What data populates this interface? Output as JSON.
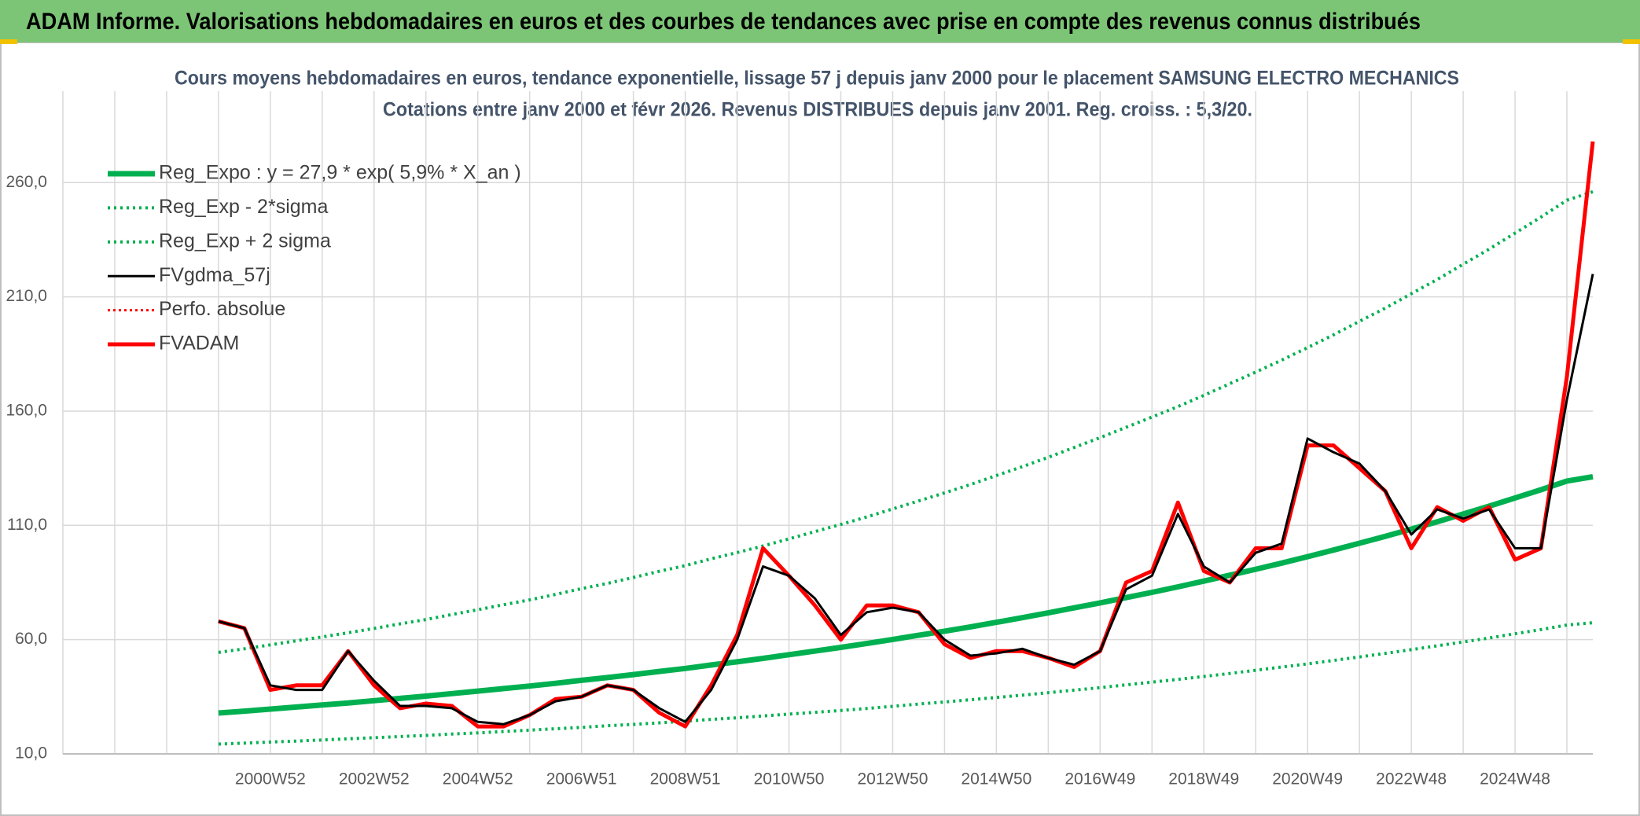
{
  "header": {
    "title": "ADAM Informe. Valorisations hebdomadaires en euros et des courbes de tendances avec prise en compte des revenus connus distribués"
  },
  "chart_data": {
    "type": "line",
    "title": "Cours moyens hebdomadaires en euros, tendance exponentielle, lissage 57 j depuis janv 2000 pour le placement SAMSUNG ELECTRO MECHANICS",
    "subtitle": "Cotations entre janv 2000 et févr 2026. Revenus DISTRIBUES depuis janv 2001. Reg. croiss. : 5,3/20.",
    "categories": [
      null,
      null,
      null,
      null,
      null,
      null,
      null,
      null,
      "2000W52",
      null,
      null,
      null,
      "2002W52",
      null,
      null,
      null,
      "2004W52",
      null,
      null,
      null,
      "2006W51",
      null,
      null,
      null,
      "2008W51",
      null,
      null,
      null,
      "2010W50",
      null,
      null,
      null,
      "2012W50",
      null,
      null,
      null,
      "2014W50",
      null,
      null,
      null,
      "2016W49",
      null,
      null,
      null,
      "2018W49",
      null,
      null,
      null,
      "2020W49",
      null,
      null,
      null,
      "2022W48",
      null,
      null,
      null,
      "2024W48",
      null,
      null,
      null
    ],
    "ylim": [
      10,
      300
    ],
    "yticks": [
      {
        "value": 10,
        "label": "10,0"
      },
      {
        "value": 60,
        "label": "60,0"
      },
      {
        "value": 110,
        "label": "110,0"
      },
      {
        "value": 160,
        "label": "160,0"
      },
      {
        "value": 210,
        "label": "210,0"
      },
      {
        "value": 260,
        "label": "260,0"
      }
    ],
    "grid": true,
    "legend": "top-left",
    "series": [
      {
        "name": "Reg_Expo : y = 27,9 * exp( 5,9% *  X_an )",
        "color": "#00b050",
        "style": "solid",
        "width": 7,
        "values": [
          null,
          null,
          null,
          null,
          null,
          null,
          27.9,
          28.7,
          29.6,
          30.5,
          31.4,
          32.3,
          33.3,
          34.3,
          35.3,
          36.4,
          37.5,
          38.6,
          39.7,
          40.9,
          42.2,
          43.4,
          44.7,
          46.1,
          47.4,
          48.9,
          50.3,
          51.8,
          53.4,
          55.0,
          56.6,
          58.3,
          60.1,
          61.9,
          63.7,
          65.6,
          67.6,
          69.6,
          71.7,
          73.9,
          76.1,
          78.4,
          80.7,
          83.1,
          85.6,
          88.2,
          90.8,
          93.5,
          96.3,
          99.2,
          102.2,
          105.2,
          108.4,
          111.6,
          115.0,
          118.4,
          122.0,
          125.6,
          129.4,
          131.3
        ]
      },
      {
        "name": "Reg_Exp - 2*sigma",
        "color": "#00b050",
        "style": "dotted",
        "width": 4,
        "values": [
          null,
          null,
          null,
          null,
          null,
          null,
          14.3,
          14.7,
          15.2,
          15.6,
          16.1,
          16.6,
          17.1,
          17.6,
          18.1,
          18.7,
          19.2,
          19.8,
          20.4,
          21.0,
          21.6,
          22.3,
          22.9,
          23.6,
          24.3,
          25.1,
          25.8,
          26.6,
          27.4,
          28.2,
          29.0,
          29.9,
          30.8,
          31.8,
          32.7,
          33.7,
          34.7,
          35.7,
          36.8,
          37.9,
          39.0,
          40.2,
          41.4,
          42.6,
          43.9,
          45.2,
          46.6,
          48.0,
          49.4,
          50.9,
          52.4,
          54.0,
          55.6,
          57.3,
          59.0,
          60.7,
          62.6,
          64.4,
          66.4,
          67.4
        ]
      },
      {
        "name": "Reg_Exp + 2 sigma",
        "color": "#00b050",
        "style": "dotted",
        "width": 4,
        "values": [
          null,
          null,
          null,
          null,
          null,
          null,
          54.4,
          56.0,
          57.7,
          59.5,
          61.2,
          63.0,
          64.9,
          66.9,
          68.8,
          71.0,
          73.1,
          75.3,
          77.4,
          79.8,
          82.3,
          84.6,
          87.2,
          89.9,
          92.4,
          95.4,
          98.1,
          101.0,
          104.1,
          107.3,
          110.4,
          113.7,
          117.2,
          120.7,
          124.2,
          127.9,
          131.8,
          135.7,
          139.8,
          144.1,
          148.4,
          152.9,
          157.4,
          162.0,
          166.9,
          172.0,
          177.1,
          182.3,
          187.8,
          193.4,
          199.3,
          205.1,
          211.4,
          217.6,
          224.3,
          230.9,
          237.9,
          244.9,
          252.3,
          256.0
        ]
      },
      {
        "name": "FVgdma_57j",
        "color": "#000000",
        "style": "solid",
        "width": 3,
        "values": [
          null,
          null,
          null,
          null,
          null,
          null,
          68,
          65,
          40,
          38,
          38,
          55,
          42,
          31,
          31,
          30,
          24,
          23,
          27,
          33,
          35,
          40,
          38,
          30,
          24,
          38,
          60,
          92,
          88,
          78,
          62,
          72,
          74,
          72,
          60,
          53,
          54,
          56,
          52,
          49,
          55,
          82,
          88,
          115,
          92,
          85,
          98,
          102,
          148,
          142,
          137,
          125,
          106,
          117,
          113,
          117,
          100,
          100,
          165,
          220
        ]
      },
      {
        "name": "Perfo. absolue",
        "color": "#ff0000",
        "style": "dotted",
        "width": 3,
        "values": [
          null,
          null,
          null,
          null,
          null,
          null,
          null,
          null,
          null,
          null,
          null,
          null,
          null,
          null,
          null,
          null,
          null,
          null,
          null,
          null,
          null,
          null,
          null,
          null,
          null,
          null,
          null,
          null,
          null,
          null,
          null,
          null,
          null,
          null,
          null,
          null,
          null,
          null,
          null,
          null,
          null,
          null,
          null,
          null,
          null,
          null,
          null,
          null,
          null,
          null,
          null,
          null,
          null,
          null,
          null,
          null,
          null,
          null,
          null,
          null
        ]
      },
      {
        "name": "FVADAM",
        "color": "#ff0000",
        "style": "solid",
        "width": 5,
        "values": [
          null,
          null,
          null,
          null,
          null,
          null,
          68,
          65,
          38,
          40,
          40,
          55,
          40,
          30,
          32,
          31,
          22,
          22,
          27,
          34,
          35,
          40,
          38,
          28,
          22,
          40,
          62,
          100,
          88,
          75,
          60,
          75,
          75,
          72,
          58,
          52,
          55,
          55,
          52,
          48,
          55,
          85,
          90,
          120,
          90,
          85,
          100,
          100,
          145,
          145,
          135,
          125,
          100,
          118,
          112,
          118,
          95,
          100,
          175,
          278
        ]
      }
    ]
  }
}
